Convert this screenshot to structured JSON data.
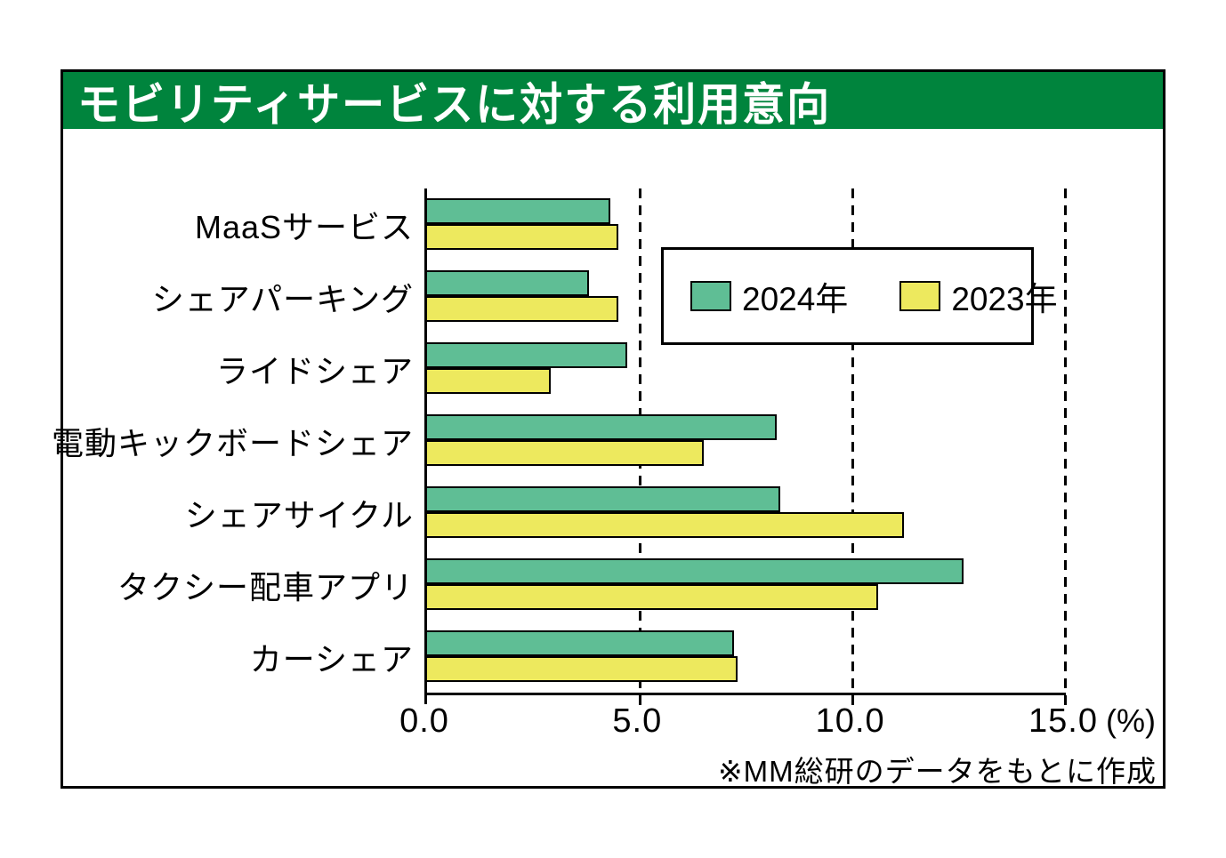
{
  "header": {
    "title": "モビリティサービスに対する利用意向",
    "bg_color": "#00843D",
    "text_color": "#FFFFFF"
  },
  "chart_data": {
    "type": "bar",
    "orientation": "horizontal",
    "title": "モビリティサービスに対する利用意向",
    "categories": [
      "MaaSサービス",
      "シェアパーキング",
      "ライドシェア",
      "電動キックボードシェア",
      "シェアサイクル",
      "タクシー配車アプリ",
      "カーシェア"
    ],
    "series": [
      {
        "name": "2024年",
        "color": "#5FBE95",
        "values": [
          4.3,
          3.8,
          4.7,
          8.2,
          8.3,
          12.6,
          7.2
        ]
      },
      {
        "name": "2023年",
        "color": "#EDE95E",
        "values": [
          4.5,
          4.5,
          2.9,
          6.5,
          11.2,
          10.6,
          7.3
        ]
      }
    ],
    "xlabel": "",
    "ylabel": "",
    "xlim": [
      0,
      15
    ],
    "xticks": [
      0,
      5,
      10,
      15
    ],
    "xtick_labels": [
      "0.0",
      "5.0",
      "10.0",
      "15.0"
    ],
    "x_unit_label": "(%)",
    "grid": "dashed vertical gridlines at 5.0, 10.0, 15.0",
    "legend_position": "inside plot, upper right"
  },
  "legend": {
    "items": [
      {
        "label": "2024年",
        "color": "#5FBE95"
      },
      {
        "label": "2023年",
        "color": "#EDE95E"
      }
    ]
  },
  "footer": {
    "note": "※MM総研のデータをもとに作成"
  }
}
